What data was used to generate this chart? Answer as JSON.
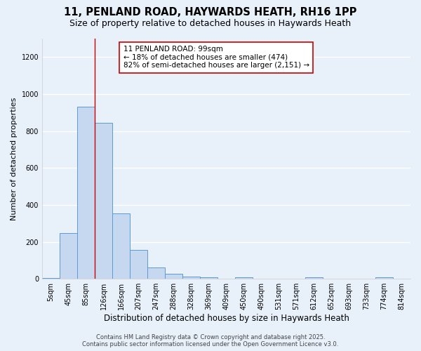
{
  "title_line1": "11, PENLAND ROAD, HAYWARDS HEATH, RH16 1PP",
  "title_line2": "Size of property relative to detached houses in Haywards Heath",
  "xlabel": "Distribution of detached houses by size in Haywards Heath",
  "ylabel": "Number of detached properties",
  "bin_labels": [
    "5sqm",
    "45sqm",
    "85sqm",
    "126sqm",
    "166sqm",
    "207sqm",
    "247sqm",
    "288sqm",
    "328sqm",
    "369sqm",
    "409sqm",
    "450sqm",
    "490sqm",
    "531sqm",
    "571sqm",
    "612sqm",
    "652sqm",
    "693sqm",
    "733sqm",
    "774sqm",
    "814sqm"
  ],
  "bar_heights": [
    5,
    248,
    930,
    845,
    355,
    157,
    60,
    28,
    12,
    10,
    0,
    10,
    0,
    0,
    0,
    8,
    0,
    0,
    0,
    8,
    0
  ],
  "bar_color": "#c5d8f0",
  "bar_edge_color": "#5b9bd5",
  "background_color": "#e8f0fa",
  "grid_color": "#ffffff",
  "vline_x_index": 2.5,
  "vline_color": "#cc0000",
  "annotation_text": "11 PENLAND ROAD: 99sqm\n← 18% of detached houses are smaller (474)\n82% of semi-detached houses are larger (2,151) →",
  "annotation_box_facecolor": "#ffffff",
  "annotation_box_edgecolor": "#cc0000",
  "ylim": [
    0,
    1300
  ],
  "yticks": [
    0,
    200,
    400,
    600,
    800,
    1000,
    1200
  ],
  "footer_line1": "Contains HM Land Registry data © Crown copyright and database right 2025.",
  "footer_line2": "Contains public sector information licensed under the Open Government Licence v3.0.",
  "title_fontsize": 10.5,
  "subtitle_fontsize": 9,
  "ylabel_fontsize": 8,
  "xlabel_fontsize": 8.5,
  "tick_fontsize": 7,
  "annotation_fontsize": 7.5,
  "footer_fontsize": 6
}
